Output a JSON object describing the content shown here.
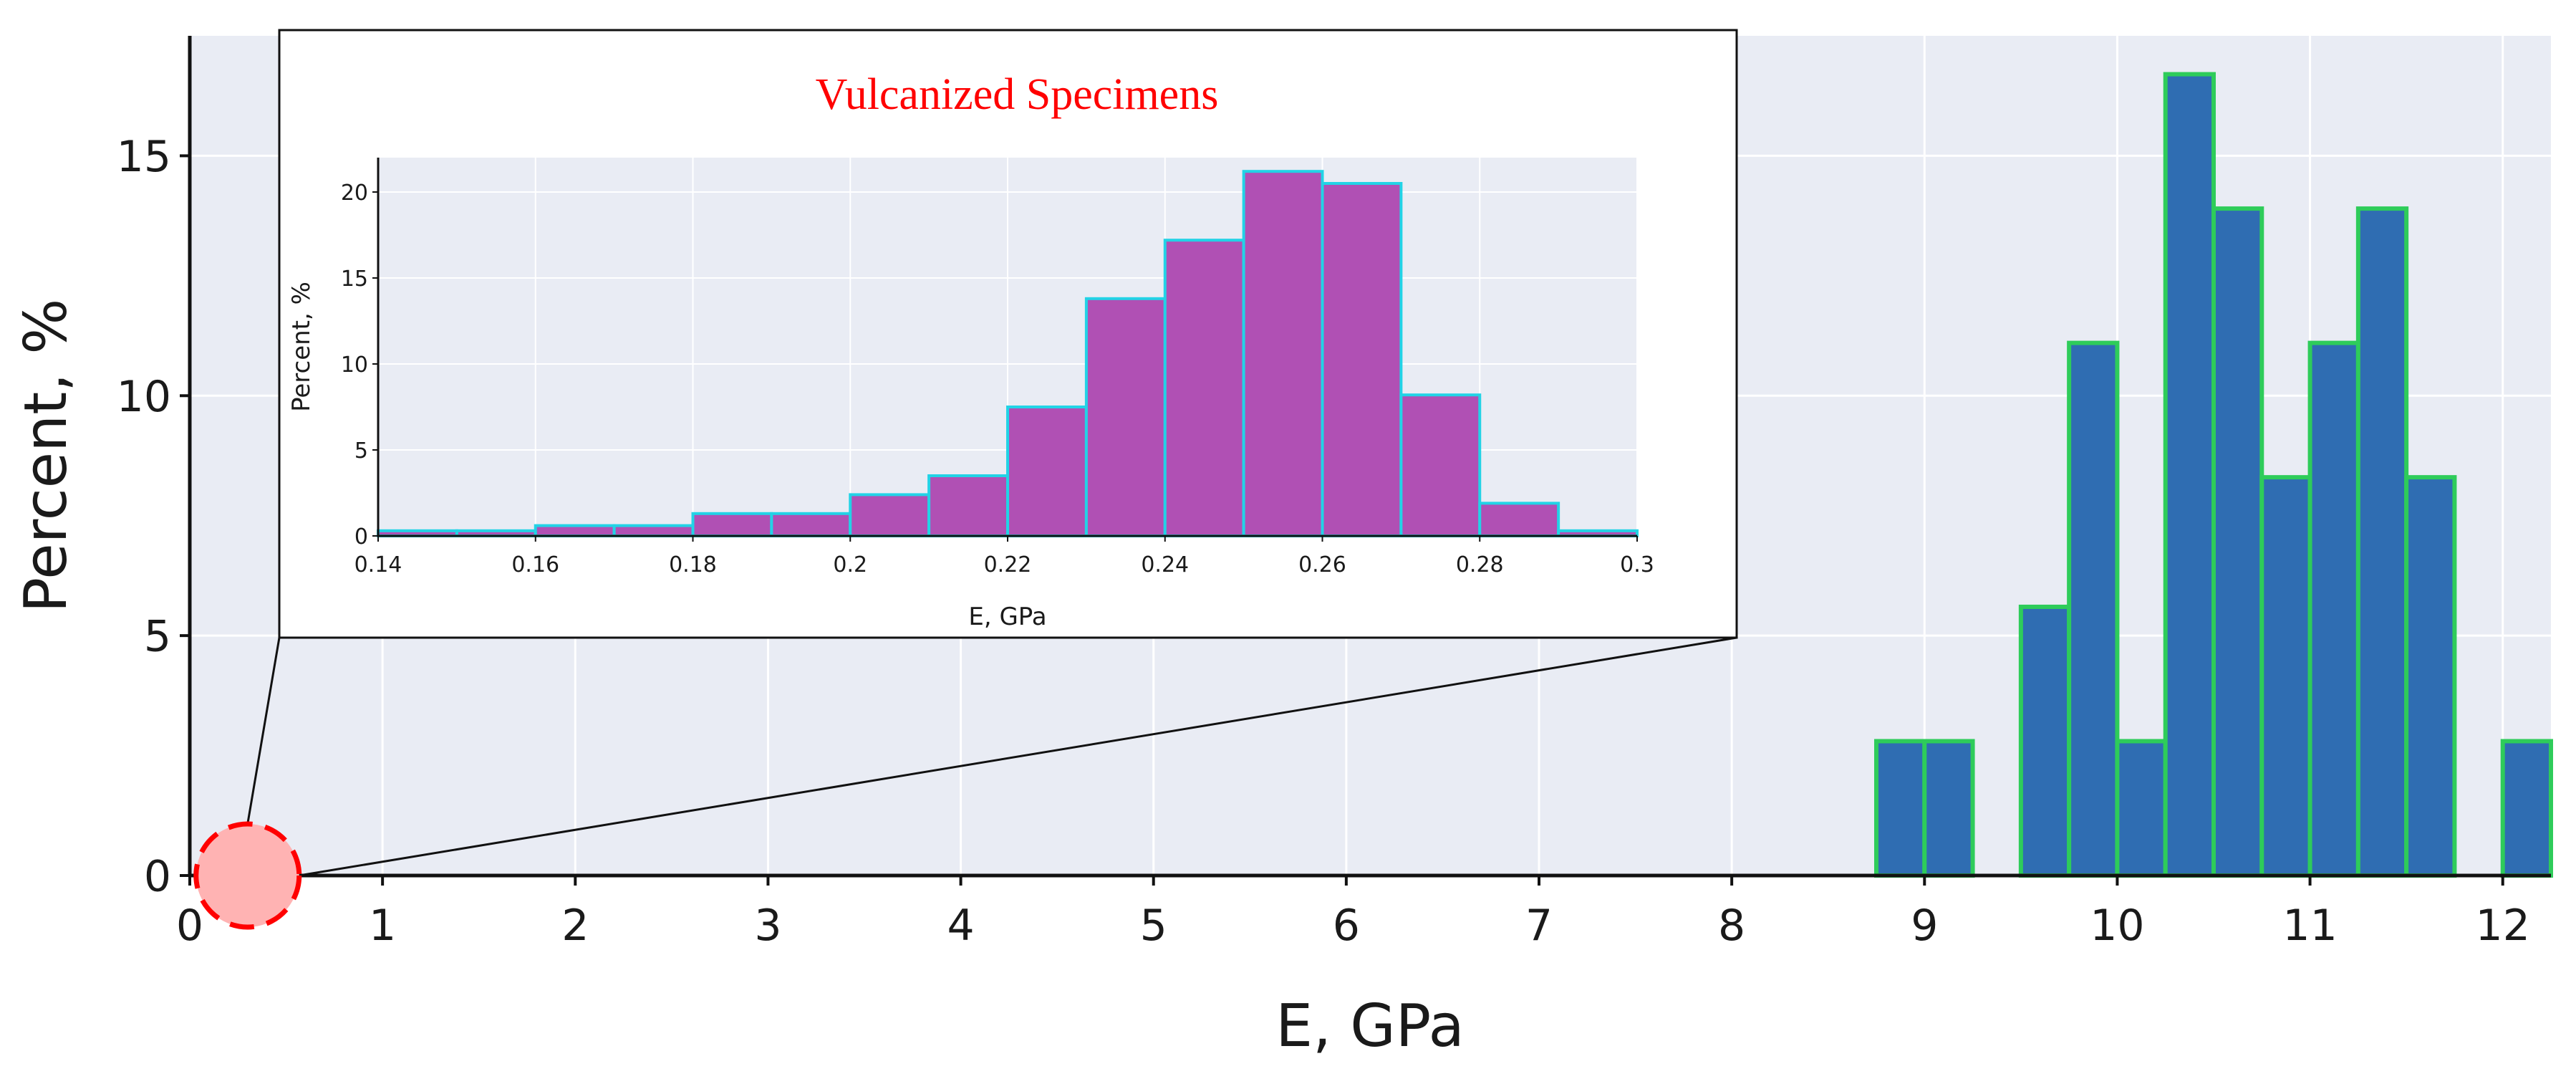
{
  "chart_data": [
    {
      "type": "bar",
      "role": "main",
      "xlabel": "E, GPa",
      "ylabel": "Percent, %",
      "xlim": [
        0,
        12.25
      ],
      "ylim": [
        0,
        17.5
      ],
      "xticks": [
        0,
        1,
        2,
        3,
        4,
        5,
        6,
        7,
        8,
        9,
        10,
        11,
        12
      ],
      "yticks": [
        0,
        5,
        10,
        15
      ],
      "grid": true,
      "bin_width": 0.25,
      "bins": [
        {
          "x0": 8.75,
          "value": 2.8
        },
        {
          "x0": 9.0,
          "value": 2.8
        },
        {
          "x0": 9.5,
          "value": 5.6
        },
        {
          "x0": 9.75,
          "value": 11.1
        },
        {
          "x0": 10.0,
          "value": 2.8
        },
        {
          "x0": 10.25,
          "value": 16.7
        },
        {
          "x0": 10.5,
          "value": 13.9
        },
        {
          "x0": 10.75,
          "value": 8.3
        },
        {
          "x0": 11.0,
          "value": 11.1
        },
        {
          "x0": 11.25,
          "value": 13.9
        },
        {
          "x0": 11.5,
          "value": 8.3
        },
        {
          "x0": 12.0,
          "value": 2.8
        }
      ],
      "colors": {
        "fill": "#2f6db2",
        "edge": "#2ecc5a",
        "background": "#e9ecf4",
        "grid": "#ffffff"
      },
      "highlight": {
        "x_center": 0.3,
        "color": "#ff0000"
      }
    },
    {
      "type": "bar",
      "role": "inset",
      "title": "Vulcanized Specimens",
      "xlabel": "E, GPa",
      "ylabel": "Percent, %",
      "xlim": [
        0.14,
        0.3
      ],
      "ylim": [
        0,
        22
      ],
      "xticks": [
        0.14,
        0.16,
        0.18,
        0.2,
        0.22,
        0.24,
        0.26,
        0.28,
        0.3
      ],
      "xtick_labels": [
        "0.14",
        "0.16",
        "0.18",
        "0.2",
        "0.22",
        "0.24",
        "0.26",
        "0.28",
        "0.3"
      ],
      "yticks": [
        0,
        5,
        10,
        15,
        20
      ],
      "grid": true,
      "bin_width": 0.01,
      "bins": [
        {
          "x0": 0.14,
          "value": 0.3
        },
        {
          "x0": 0.15,
          "value": 0.3
        },
        {
          "x0": 0.16,
          "value": 0.6
        },
        {
          "x0": 0.17,
          "value": 0.6
        },
        {
          "x0": 0.18,
          "value": 1.3
        },
        {
          "x0": 0.19,
          "value": 1.3
        },
        {
          "x0": 0.2,
          "value": 2.4
        },
        {
          "x0": 0.21,
          "value": 3.5
        },
        {
          "x0": 0.22,
          "value": 7.5
        },
        {
          "x0": 0.23,
          "value": 13.8
        },
        {
          "x0": 0.24,
          "value": 17.2
        },
        {
          "x0": 0.25,
          "value": 21.2
        },
        {
          "x0": 0.26,
          "value": 20.5
        },
        {
          "x0": 0.27,
          "value": 8.2
        },
        {
          "x0": 0.28,
          "value": 1.9
        },
        {
          "x0": 0.29,
          "value": 0.3
        }
      ],
      "colors": {
        "fill": "#b050b4",
        "edge": "#22d3e6",
        "background": "#e9ecf4",
        "grid": "#ffffff"
      }
    }
  ]
}
